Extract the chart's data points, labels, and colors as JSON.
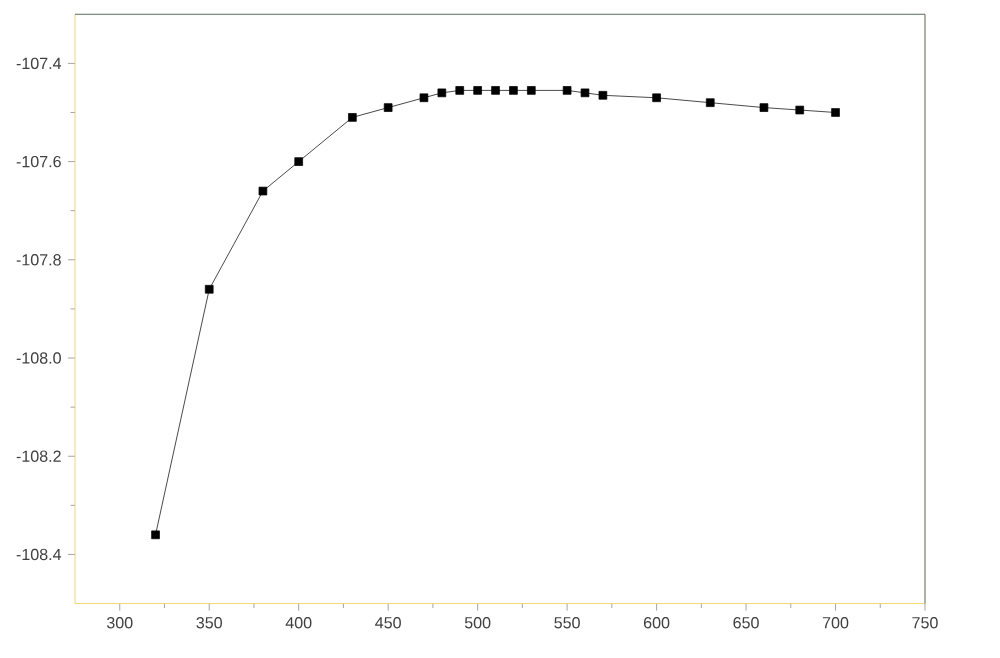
{
  "chart_data": {
    "type": "line",
    "marker": "square",
    "line_style": "solid",
    "x": [
      320,
      350,
      380,
      400,
      430,
      450,
      470,
      480,
      490,
      500,
      510,
      520,
      530,
      550,
      560,
      570,
      600,
      630,
      660,
      680,
      700
    ],
    "series": [
      {
        "color": "#000000",
        "values": [
          -108.36,
          -107.86,
          -107.66,
          -107.6,
          -107.51,
          -107.49,
          -107.47,
          -107.46,
          -107.455,
          -107.455,
          -107.455,
          -107.455,
          -107.455,
          -107.455,
          -107.46,
          -107.465,
          -107.47,
          -107.48,
          -107.49,
          -107.495,
          -107.5
        ]
      }
    ],
    "xlim": [
      275,
      750
    ],
    "xticks": [
      300,
      350,
      400,
      450,
      500,
      550,
      600,
      650,
      700,
      750
    ],
    "ylim": [
      -108.5,
      -107.3
    ],
    "yticks": [
      {
        "value": -108.4,
        "label": "-108.4"
      },
      {
        "value": -108.2,
        "label": "-108.2"
      },
      {
        "value": -108.0,
        "label": "-108.0"
      },
      {
        "value": -107.8,
        "label": "-107.8"
      },
      {
        "value": -107.6,
        "label": "-107.6"
      },
      {
        "value": -107.4,
        "label": "-107.4"
      }
    ]
  }
}
